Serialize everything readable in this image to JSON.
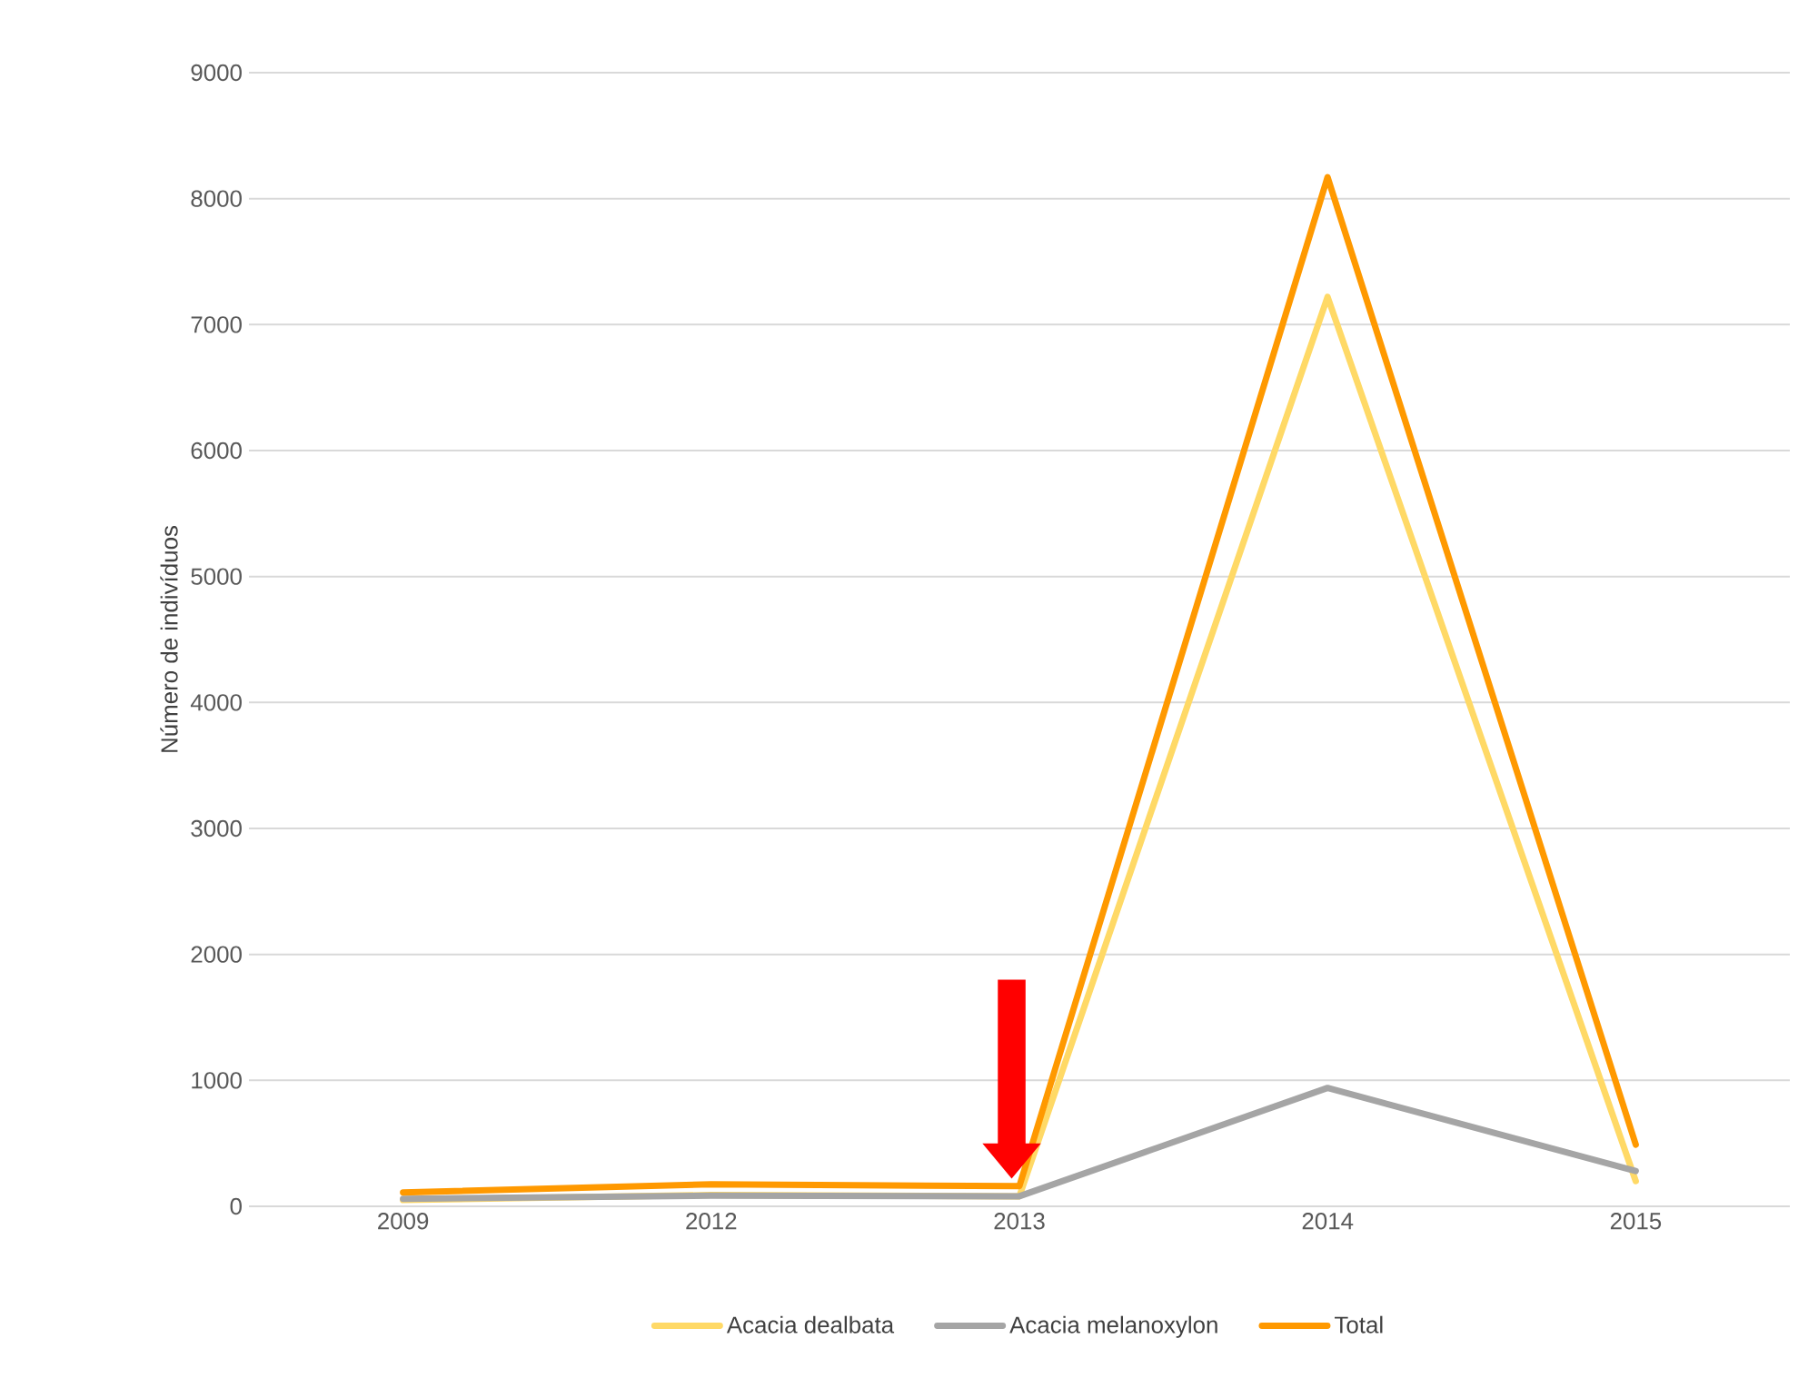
{
  "chart_data": {
    "type": "line",
    "ylabel": "Número de indivíduos",
    "categories": [
      "2009",
      "2012",
      "2013",
      "2014",
      "2015"
    ],
    "series": [
      {
        "name": "Acacia dealbata",
        "color": "#ffd966",
        "values": [
          50,
          90,
          80,
          7220,
          200
        ]
      },
      {
        "name": "Acacia melanoxylon",
        "color": "#a5a5a5",
        "values": [
          60,
          85,
          80,
          940,
          280
        ]
      },
      {
        "name": "Total",
        "color": "#ff9900",
        "values": [
          110,
          175,
          160,
          8170,
          490
        ]
      }
    ],
    "ylim": [
      0,
      9000
    ],
    "yticks": [
      0,
      1000,
      2000,
      3000,
      4000,
      5000,
      6000,
      7000,
      8000,
      9000
    ],
    "grid": "y",
    "legend": "bottom",
    "marker": "none",
    "line_style": "solid"
  }
}
